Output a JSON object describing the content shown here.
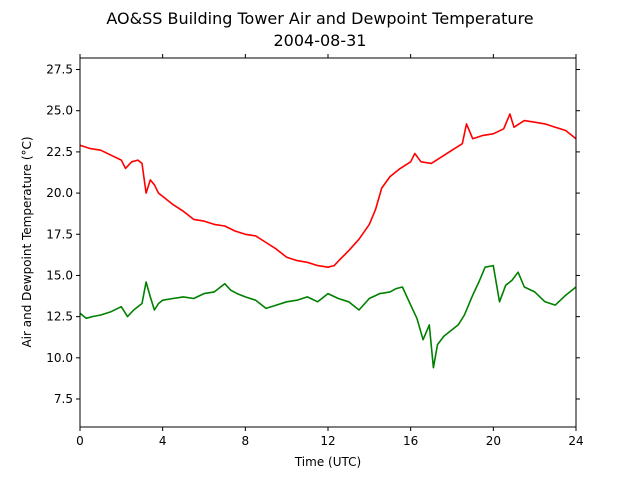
{
  "chart_data": {
    "type": "line",
    "title": "AO&SS Building Tower Air and Dewpoint Temperature",
    "subtitle": "2004-08-31",
    "xlabel": "Time (UTC)",
    "ylabel": "Air and Dewpoint Temperature (°C)",
    "xlim": [
      0,
      24
    ],
    "ylim": [
      5.8,
      28.2
    ],
    "xticks": [
      0,
      4,
      8,
      12,
      16,
      20,
      24
    ],
    "xtick_labels": [
      "0",
      "4",
      "8",
      "12",
      "16",
      "20",
      "24"
    ],
    "yticks": [
      7.5,
      10.0,
      12.5,
      15.0,
      17.5,
      20.0,
      22.5,
      25.0,
      27.5
    ],
    "ytick_labels": [
      "7.5",
      "10.0",
      "12.5",
      "15.0",
      "17.5",
      "20.0",
      "22.5",
      "25.0",
      "27.5"
    ],
    "grid": false,
    "series": [
      {
        "color": "#ff0000",
        "x": [
          0,
          0.5,
          1,
          1.5,
          2,
          2.2,
          2.5,
          2.8,
          3,
          3.2,
          3.4,
          3.6,
          3.8,
          4,
          4.5,
          5,
          5.5,
          6,
          6.5,
          7,
          7.5,
          8,
          8.5,
          9,
          9.5,
          10,
          10.5,
          11,
          11.5,
          12,
          12.3,
          12.6,
          13,
          13.5,
          14,
          14.3,
          14.6,
          15,
          15.5,
          16,
          16.2,
          16.5,
          17,
          17.5,
          18,
          18.5,
          18.7,
          19,
          19.5,
          20,
          20.5,
          20.8,
          21,
          21.5,
          22,
          22.5,
          23,
          23.5,
          24
        ],
        "values": [
          22.9,
          22.7,
          22.6,
          22.3,
          22.0,
          21.5,
          21.9,
          22.0,
          21.8,
          20.0,
          20.8,
          20.5,
          20.0,
          19.8,
          19.3,
          18.9,
          18.4,
          18.3,
          18.1,
          18.0,
          17.7,
          17.5,
          17.4,
          17.0,
          16.6,
          16.1,
          15.9,
          15.8,
          15.6,
          15.5,
          15.6,
          16.0,
          16.5,
          17.2,
          18.1,
          19.0,
          20.3,
          21.0,
          21.5,
          21.9,
          22.4,
          21.9,
          21.8,
          22.2,
          22.6,
          23.0,
          24.2,
          23.3,
          23.5,
          23.6,
          23.9,
          24.8,
          24.0,
          24.4,
          24.3,
          24.2,
          24.0,
          23.8,
          23.3
        ]
      },
      {
        "color": "#008000",
        "x": [
          0,
          0.3,
          0.6,
          1,
          1.5,
          2,
          2.3,
          2.6,
          3,
          3.2,
          3.4,
          3.6,
          3.8,
          4,
          4.5,
          5,
          5.5,
          6,
          6.5,
          7,
          7.3,
          7.6,
          8,
          8.5,
          9,
          9.5,
          10,
          10.5,
          11,
          11.5,
          12,
          12.5,
          13,
          13.5,
          14,
          14.5,
          15,
          15.3,
          15.6,
          16,
          16.3,
          16.6,
          16.9,
          17.1,
          17.3,
          17.6,
          18,
          18.3,
          18.6,
          19,
          19.3,
          19.6,
          20,
          20.3,
          20.6,
          20.9,
          21.2,
          21.5,
          22,
          22.5,
          23,
          23.5,
          24
        ],
        "values": [
          12.7,
          12.4,
          12.5,
          12.6,
          12.8,
          13.1,
          12.5,
          12.9,
          13.3,
          14.6,
          13.7,
          12.9,
          13.3,
          13.5,
          13.6,
          13.7,
          13.6,
          13.9,
          14.0,
          14.5,
          14.1,
          13.9,
          13.7,
          13.5,
          13.0,
          13.2,
          13.4,
          13.5,
          13.7,
          13.4,
          13.9,
          13.6,
          13.4,
          12.9,
          13.6,
          13.9,
          14.0,
          14.2,
          14.3,
          13.2,
          12.4,
          11.1,
          12.0,
          9.4,
          10.8,
          11.3,
          11.7,
          12.0,
          12.6,
          13.8,
          14.6,
          15.5,
          15.6,
          13.4,
          14.4,
          14.7,
          15.2,
          14.3,
          14.0,
          13.4,
          13.2,
          13.8,
          14.3
        ]
      }
    ]
  }
}
